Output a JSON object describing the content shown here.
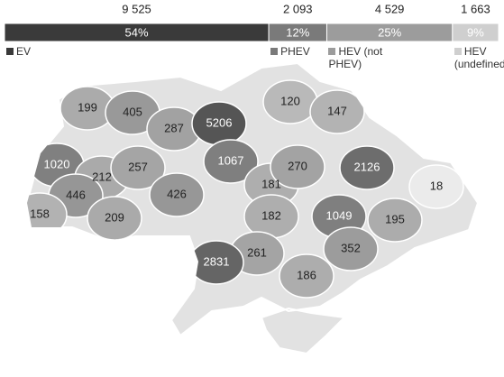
{
  "bar": {
    "type": "stacked-bar",
    "series": [
      {
        "name": "EV",
        "color": "#3a3a3a",
        "values": [
          9525
        ],
        "value_labels": [
          "9 525"
        ],
        "share_labels": [
          "54%"
        ]
      },
      {
        "name": "PHEV",
        "color": "#7a7a7a",
        "values": [
          2093
        ],
        "value_labels": [
          "2 093"
        ],
        "share_labels": [
          "12%"
        ]
      },
      {
        "name": "HEV (not PHEV)",
        "color": "#9c9c9c",
        "values": [
          4529
        ],
        "value_labels": [
          "4 529"
        ],
        "share_labels": [
          "25%"
        ]
      },
      {
        "name": "HEV (undefined)",
        "color": "#cfcfcf",
        "values": [
          1663
        ],
        "value_labels": [
          "1 663"
        ],
        "share_labels": [
          "9%"
        ]
      }
    ]
  },
  "map": {
    "type": "choropleth",
    "values": [
      199,
      405,
      287,
      5206,
      120,
      147,
      1020,
      212,
      257,
      1067,
      181,
      270,
      2126,
      18,
      446,
      158,
      209,
      426,
      182,
      1049,
      195,
      261,
      352,
      2831,
      186
    ]
  }
}
